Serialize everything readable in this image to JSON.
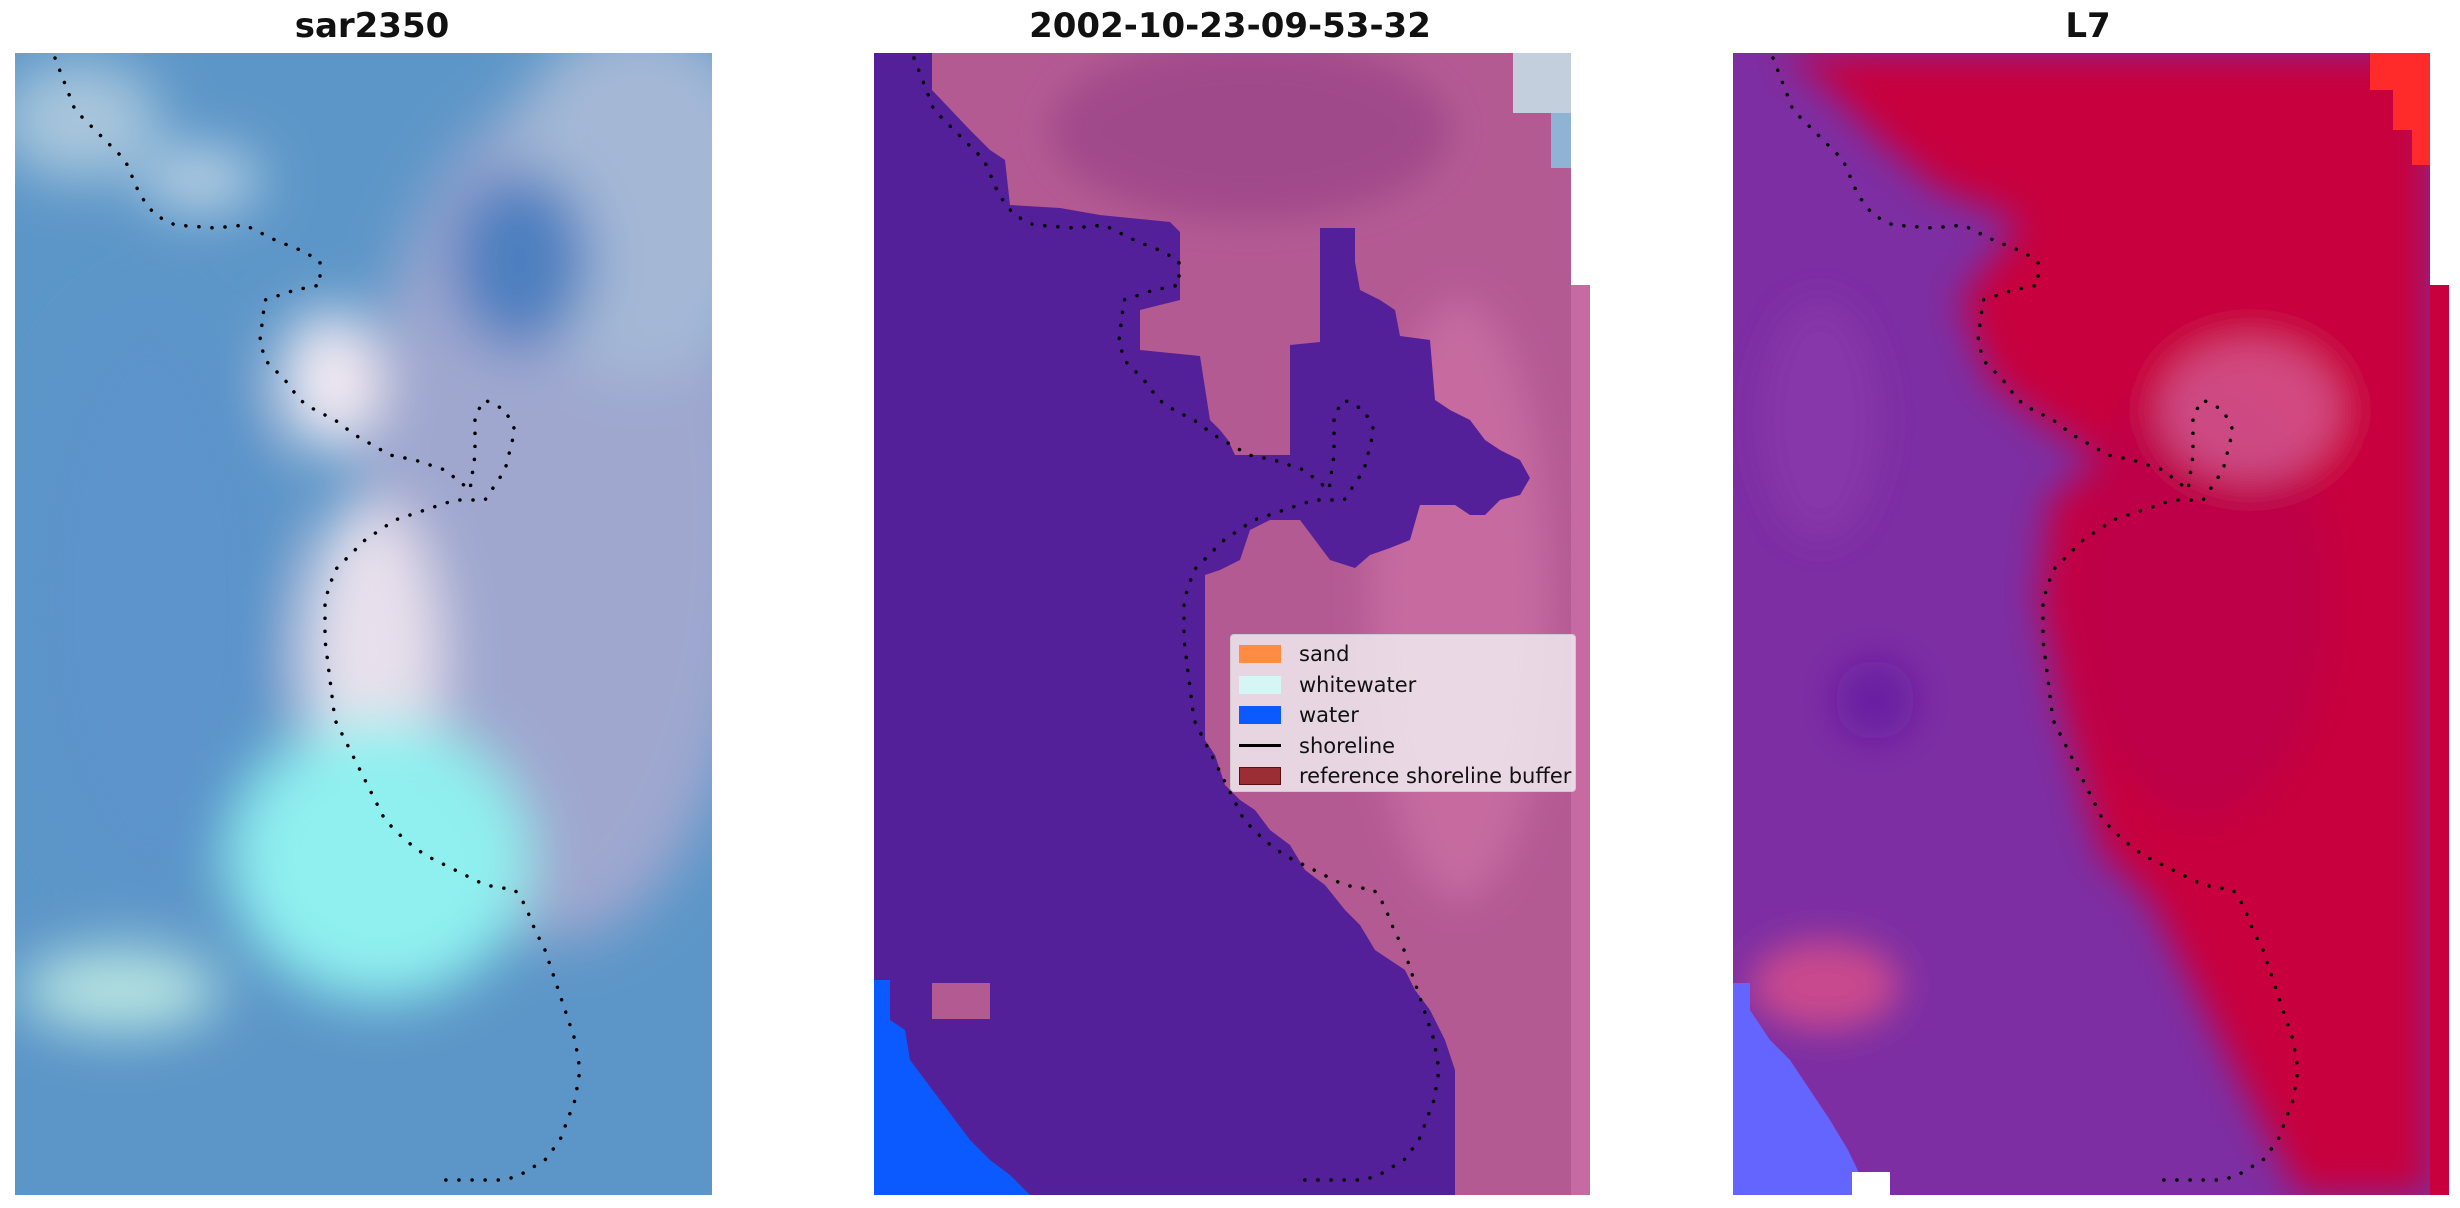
{
  "panels": [
    {
      "title": "sar2350"
    },
    {
      "title": "2002-10-23-09-53-32"
    },
    {
      "title": "L7"
    }
  ],
  "legend": {
    "items": [
      {
        "label": "sand",
        "color": "#ff8c42",
        "kind": "patch"
      },
      {
        "label": "whitewater",
        "color": "#d6f6f6",
        "kind": "patch"
      },
      {
        "label": "water",
        "color": "#0a5aff",
        "kind": "patch"
      },
      {
        "label": "shoreline",
        "color": "#000000",
        "kind": "line"
      },
      {
        "label": "reference shoreline buffer",
        "color": "#9b2e34",
        "kind": "patch"
      }
    ]
  },
  "colors": {
    "water_class": "#54209a",
    "land_class": "#b55a92",
    "rgb_water": "#5b95c9",
    "rgb_whitewater": "#8ff4f0",
    "mndwi_low": "#7b1fa2",
    "mndwi_high": "#c8003a"
  }
}
